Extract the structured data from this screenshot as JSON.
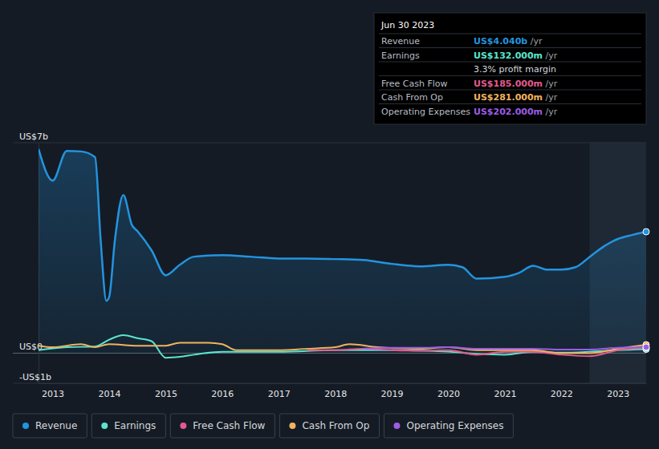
{
  "chart_data": {
    "type": "line",
    "xlim": [
      2012.75,
      2023.5
    ],
    "xticks": [
      2013,
      2014,
      2015,
      2016,
      2017,
      2018,
      2019,
      2020,
      2021,
      2022,
      2023
    ],
    "ylim": [
      -1,
      7
    ],
    "yticks": [
      {
        "value": -1,
        "label": "-US$1b"
      },
      {
        "value": 0,
        "label": "US$0"
      },
      {
        "value": 7,
        "label": "US$7b"
      }
    ],
    "grid": true,
    "legend": "bottom",
    "highlight_range": [
      2022.5,
      2023.5
    ],
    "series": [
      {
        "name": "Revenue",
        "color": "#2394df",
        "type": "area",
        "x": [
          2012.75,
          2013.0,
          2013.25,
          2013.5,
          2013.75,
          2013.85,
          2013.95,
          2014.0,
          2014.1,
          2014.25,
          2014.4,
          2014.5,
          2014.75,
          2015.0,
          2015.25,
          2015.5,
          2016.0,
          2016.5,
          2017.0,
          2017.5,
          2018.0,
          2018.5,
          2019.0,
          2019.5,
          2020.0,
          2020.25,
          2020.5,
          2021.0,
          2021.25,
          2021.5,
          2021.75,
          2022.0,
          2022.25,
          2022.5,
          2022.75,
          2023.0,
          2023.25,
          2023.5
        ],
        "values": [
          6.79,
          5.74,
          6.73,
          6.71,
          6.52,
          3.74,
          1.74,
          1.87,
          3.74,
          5.26,
          4.27,
          4.06,
          3.42,
          2.59,
          2.94,
          3.21,
          3.26,
          3.21,
          3.15,
          3.15,
          3.13,
          3.1,
          2.97,
          2.89,
          2.94,
          2.86,
          2.48,
          2.54,
          2.67,
          2.91,
          2.78,
          2.78,
          2.86,
          3.2,
          3.55,
          3.8,
          3.93,
          4.04
        ]
      },
      {
        "name": "Earnings",
        "color": "#58e6cf",
        "type": "line",
        "x": [
          2012.75,
          2013.25,
          2013.75,
          2014.0,
          2014.25,
          2014.5,
          2014.75,
          2015.0,
          2015.25,
          2015.5,
          2016.0,
          2017.0,
          2018.0,
          2019.0,
          2020.0,
          2020.5,
          2021.0,
          2021.5,
          2022.0,
          2022.5,
          2023.0,
          2023.5
        ],
        "values": [
          0.1,
          0.2,
          0.22,
          0.45,
          0.6,
          0.5,
          0.4,
          -0.15,
          -0.12,
          -0.05,
          0.05,
          0.05,
          0.1,
          0.1,
          0.05,
          -0.02,
          -0.05,
          0.05,
          0.02,
          0.05,
          0.1,
          0.132
        ]
      },
      {
        "name": "Free Cash Flow",
        "color": "#e35a8e",
        "type": "line",
        "x": [
          2017.5,
          2018.0,
          2018.5,
          2019.0,
          2019.5,
          2020.0,
          2020.5,
          2021.0,
          2021.5,
          2022.0,
          2022.5,
          2023.0,
          2023.5
        ],
        "values": [
          0.1,
          0.1,
          0.15,
          0.1,
          0.08,
          0.1,
          -0.05,
          0.05,
          0.05,
          -0.05,
          -0.1,
          0.1,
          0.185
        ]
      },
      {
        "name": "Cash From Op",
        "color": "#f0b35f",
        "type": "line",
        "x": [
          2012.75,
          2013.0,
          2013.5,
          2013.75,
          2014.0,
          2014.5,
          2015.0,
          2015.25,
          2015.75,
          2016.0,
          2016.25,
          2017.0,
          2017.5,
          2018.0,
          2018.25,
          2018.75,
          2019.5,
          2020.0,
          2020.5,
          2021.0,
          2021.5,
          2022.0,
          2022.5,
          2023.0,
          2023.5
        ],
        "values": [
          0.25,
          0.2,
          0.3,
          0.2,
          0.3,
          0.25,
          0.25,
          0.35,
          0.35,
          0.3,
          0.1,
          0.1,
          0.15,
          0.2,
          0.3,
          0.2,
          0.15,
          0.2,
          0.1,
          0.1,
          0.1,
          0.0,
          0.0,
          0.15,
          0.281
        ]
      },
      {
        "name": "Operating Expenses",
        "color": "#9b5de5",
        "type": "line",
        "x": [
          2018.5,
          2019.0,
          2019.5,
          2020.0,
          2020.5,
          2021.0,
          2021.5,
          2022.0,
          2022.5,
          2023.0,
          2023.5
        ],
        "values": [
          0.15,
          0.18,
          0.18,
          0.2,
          0.15,
          0.15,
          0.15,
          0.12,
          0.12,
          0.18,
          0.202
        ]
      }
    ],
    "annotation": {
      "date": "Jun 30 2023",
      "rows": [
        {
          "label": "Revenue",
          "value": "US$4.040b",
          "unit": "/yr",
          "series": 0
        },
        {
          "label": "Earnings",
          "value": "US$132.000m",
          "unit": "/yr",
          "series": 1
        },
        {
          "label": "",
          "value": "3.3% profit margin",
          "unit": null,
          "series": null
        },
        {
          "label": "Free Cash Flow",
          "value": "US$185.000m",
          "unit": "/yr",
          "series": 2
        },
        {
          "label": "Cash From Op",
          "value": "US$281.000m",
          "unit": "/yr",
          "series": 3
        },
        {
          "label": "Operating Expenses",
          "value": "US$202.000m",
          "unit": "/yr",
          "series": 4
        }
      ]
    }
  }
}
